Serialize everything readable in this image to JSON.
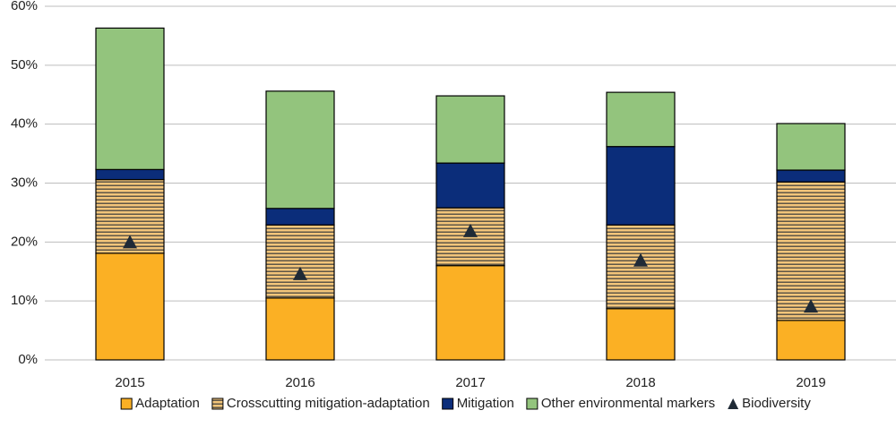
{
  "chart_data": {
    "type": "stacked-bar",
    "categories": [
      "2015",
      "2016",
      "2017",
      "2018",
      "2019"
    ],
    "series": [
      {
        "name": "Adaptation",
        "color": "#fbb024",
        "values": [
          18.1,
          10.5,
          16.0,
          8.7,
          6.7
        ]
      },
      {
        "name": "Crosscutting mitigation-adaptation",
        "color": "#f3c57a",
        "pattern": "horizontal-lines",
        "values": [
          12.5,
          12.4,
          9.8,
          14.2,
          23.5
        ]
      },
      {
        "name": "Mitigation",
        "color": "#0b2d7a",
        "values": [
          1.7,
          2.8,
          7.6,
          13.3,
          2.0
        ]
      },
      {
        "name": "Other environmental markers",
        "color": "#93c47d",
        "values": [
          24.0,
          19.9,
          11.4,
          9.2,
          7.9
        ]
      }
    ],
    "markers": {
      "name": "Biodiversity",
      "color": "#1f2a36",
      "shape": "triangle",
      "values": [
        20.0,
        14.6,
        21.9,
        16.9,
        9.1
      ]
    },
    "ylim": [
      0,
      60
    ],
    "yticks": [
      {
        "value": 0,
        "label": "0%"
      },
      {
        "value": 10,
        "label": "10%"
      },
      {
        "value": 20,
        "label": "20%"
      },
      {
        "value": 30,
        "label": "30%"
      },
      {
        "value": 40,
        "label": "40%"
      },
      {
        "value": 50,
        "label": "50%"
      },
      {
        "value": 60,
        "label": "60%"
      }
    ],
    "grid": true,
    "legend": "bottom"
  }
}
